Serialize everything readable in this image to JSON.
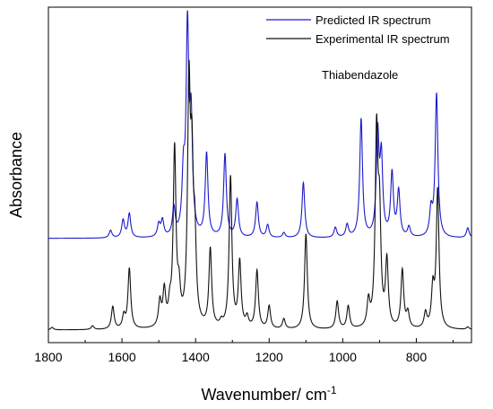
{
  "chart_data": {
    "type": "line",
    "xlabel": "Wavenumber/ cm",
    "xlabel_superscript": "-1",
    "ylabel": "Absorbance",
    "xlim": [
      1800,
      650
    ],
    "x_reversed": true,
    "xticks": [
      1800,
      1600,
      1400,
      1200,
      1000,
      800
    ],
    "xtick_labels": [
      "1800",
      "1600",
      "1400",
      "1200",
      "1000",
      "800"
    ],
    "y_ticks_shown": false,
    "legend_position": "top-right",
    "annotation": "Thiabendazole",
    "series": [
      {
        "name": "Predicted IR spectrum",
        "color": "#1a1acc",
        "baseline": 0.365,
        "peaks": [
          [
            1631,
            0.03
          ],
          [
            1597,
            0.07
          ],
          [
            1580,
            0.095
          ],
          [
            1500,
            0.05
          ],
          [
            1490,
            0.065
          ],
          [
            1459,
            0.11
          ],
          [
            1433,
            0.22
          ],
          [
            1422,
            0.8
          ],
          [
            1412,
            0.42
          ],
          [
            1370,
            0.33
          ],
          [
            1320,
            0.33
          ],
          [
            1287,
            0.15
          ],
          [
            1233,
            0.14
          ],
          [
            1204,
            0.05
          ],
          [
            1160,
            0.02
          ],
          [
            1107,
            0.22
          ],
          [
            1020,
            0.04
          ],
          [
            988,
            0.05
          ],
          [
            950,
            0.47
          ],
          [
            905,
            0.4
          ],
          [
            895,
            0.3
          ],
          [
            866,
            0.25
          ],
          [
            848,
            0.18
          ],
          [
            820,
            0.04
          ],
          [
            760,
            0.1
          ],
          [
            745,
            0.57
          ],
          [
            660,
            0.04
          ]
        ]
      },
      {
        "name": "Experimental IR spectrum",
        "color": "#111111",
        "baseline": 0.0,
        "peaks": [
          [
            1790,
            0.01
          ],
          [
            1680,
            0.015
          ],
          [
            1625,
            0.09
          ],
          [
            1595,
            0.05
          ],
          [
            1580,
            0.24
          ],
          [
            1497,
            0.1
          ],
          [
            1485,
            0.14
          ],
          [
            1470,
            0.07
          ],
          [
            1457,
            0.7
          ],
          [
            1445,
            0.12
          ],
          [
            1418,
            0.9
          ],
          [
            1410,
            0.55
          ],
          [
            1402,
            0.3
          ],
          [
            1360,
            0.31
          ],
          [
            1330,
            0.02
          ],
          [
            1305,
            0.6
          ],
          [
            1280,
            0.26
          ],
          [
            1260,
            0.04
          ],
          [
            1233,
            0.23
          ],
          [
            1200,
            0.09
          ],
          [
            1160,
            0.04
          ],
          [
            1100,
            0.38
          ],
          [
            1015,
            0.11
          ],
          [
            985,
            0.09
          ],
          [
            930,
            0.1
          ],
          [
            908,
            0.75
          ],
          [
            900,
            0.4
          ],
          [
            880,
            0.26
          ],
          [
            838,
            0.23
          ],
          [
            823,
            0.06
          ],
          [
            775,
            0.06
          ],
          [
            755,
            0.15
          ],
          [
            742,
            0.55
          ],
          [
            660,
            0.01
          ]
        ]
      }
    ]
  }
}
